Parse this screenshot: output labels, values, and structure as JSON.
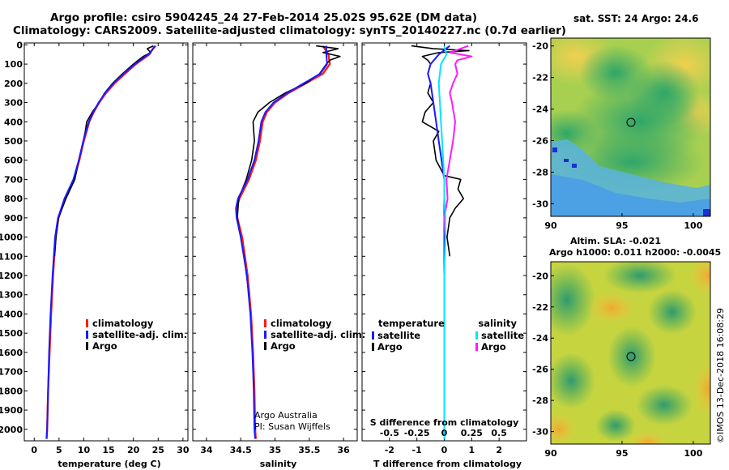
{
  "title_line1": "Argo profile: csiro 5904245_24 27-Feb-2014 25.02S 95.62E (DM data)",
  "title_line2": "Climatology: CARS2009. Satellite-adjusted climatology: synTS_20140227.nc (0.7d earlier)",
  "colors": {
    "climatology": "#ff1a1a",
    "satellite": "#1a1aff",
    "argo": "#000000",
    "sat_salinity": "#00e5ff",
    "argo_salinity": "#ff1aff"
  },
  "depth_ticks": [
    "0",
    "100",
    "200",
    "300",
    "400",
    "500",
    "600",
    "700",
    "800",
    "900",
    "1000",
    "1100",
    "1200",
    "1300",
    "1400",
    "1500",
    "1600",
    "1700",
    "1800",
    "1900",
    "2000"
  ],
  "chart_data": [
    {
      "type": "line",
      "panel": "temperature",
      "xlabel": "temperature (deg C)",
      "ylabel": "depth",
      "xlim": [
        -2,
        31
      ],
      "ylim": [
        2060,
        -10
      ],
      "xticks": [
        "0",
        "5",
        "10",
        "15",
        "20",
        "25",
        "30"
      ],
      "legend": [
        "climatology",
        "satellite-adj. clim.",
        "Argo"
      ],
      "series": [
        {
          "name": "climatology",
          "depth": [
            5,
            50,
            100,
            150,
            200,
            250,
            300,
            350,
            400,
            500,
            600,
            700,
            800,
            900,
            1000,
            1200,
            1400,
            1600,
            1800,
            2000,
            2050
          ],
          "values": [
            24.3,
            23.2,
            20.5,
            18.3,
            16.2,
            14.5,
            13.1,
            12.0,
            11.1,
            10.0,
            9.1,
            8.0,
            6.2,
            4.9,
            4.3,
            3.8,
            3.4,
            3.1,
            2.8,
            2.6,
            2.5
          ]
        },
        {
          "name": "satellite-adj. clim.",
          "depth": [
            5,
            50,
            100,
            150,
            200,
            250,
            300,
            350,
            400,
            500,
            600,
            700,
            800,
            900,
            1000,
            1200,
            1400,
            1600,
            1800,
            2000,
            2050
          ],
          "values": [
            24.5,
            23.0,
            20.3,
            18.0,
            16.0,
            14.3,
            13.0,
            11.9,
            11.0,
            9.9,
            9.0,
            7.9,
            6.1,
            4.8,
            4.2,
            3.7,
            3.3,
            3.0,
            2.8,
            2.6,
            2.5
          ]
        },
        {
          "name": "Argo",
          "depth": [
            5,
            20,
            40,
            60,
            80,
            100,
            150,
            200,
            250,
            300,
            350,
            400,
            450,
            500,
            600,
            700,
            800,
            900,
            1000,
            1100
          ],
          "values": [
            24.0,
            22.8,
            23.5,
            22.0,
            21.0,
            20.0,
            17.8,
            15.8,
            14.2,
            13.1,
            11.7,
            10.6,
            10.3,
            9.9,
            9.0,
            8.2,
            6.4,
            4.9,
            4.4,
            4.1
          ]
        }
      ]
    },
    {
      "type": "line",
      "panel": "salinity",
      "xlabel": "salinity",
      "ylabel": "depth",
      "xlim": [
        33.8,
        36.2
      ],
      "ylim": [
        2060,
        -10
      ],
      "xticks": [
        "34",
        "34.5",
        "35",
        "35.5",
        "36"
      ],
      "legend": [
        "climatology",
        "satellite-adj. clim.",
        "Argo"
      ],
      "credit_line1": "Argo Australia",
      "credit_line2": "PI: Susan Wijffels",
      "series": [
        {
          "name": "climatology",
          "depth": [
            5,
            50,
            100,
            150,
            200,
            250,
            300,
            350,
            400,
            500,
            600,
            700,
            800,
            850,
            900,
            1000,
            1200,
            1400,
            1600,
            1800,
            2000,
            2050
          ],
          "values": [
            35.7,
            35.78,
            35.8,
            35.7,
            35.45,
            35.2,
            35.0,
            34.88,
            34.82,
            34.78,
            34.72,
            34.62,
            34.48,
            34.44,
            34.45,
            34.52,
            34.6,
            34.65,
            34.68,
            34.7,
            34.71,
            34.72
          ]
        },
        {
          "name": "satellite-adj. clim.",
          "depth": [
            5,
            50,
            100,
            150,
            200,
            250,
            300,
            350,
            400,
            500,
            600,
            700,
            800,
            850,
            900,
            1000,
            1200,
            1400,
            1600,
            1800,
            2000,
            2050
          ],
          "values": [
            35.75,
            35.75,
            35.76,
            35.66,
            35.42,
            35.18,
            34.98,
            34.86,
            34.8,
            34.76,
            34.7,
            34.6,
            34.46,
            34.43,
            34.44,
            34.5,
            34.59,
            34.64,
            34.67,
            34.69,
            34.7,
            34.71
          ]
        },
        {
          "name": "Argo",
          "depth": [
            5,
            20,
            40,
            60,
            80,
            100,
            150,
            200,
            250,
            300,
            350,
            400,
            500,
            600,
            700,
            800,
            900,
            1000,
            1100,
            1300
          ],
          "values": [
            35.6,
            35.92,
            35.7,
            35.95,
            35.8,
            35.75,
            35.65,
            35.45,
            35.15,
            34.92,
            34.75,
            34.68,
            34.7,
            34.66,
            34.58,
            34.47,
            34.45,
            34.5,
            34.55,
            34.62
          ]
        }
      ]
    },
    {
      "type": "line",
      "panel": "differences",
      "xlabel": "T difference from climatology",
      "x2label": "S difference from climatology",
      "ylabel": "depth",
      "xlim": [
        -3,
        3
      ],
      "ylim": [
        2060,
        -10
      ],
      "xticks": [
        "-2",
        "-1",
        "0",
        "1",
        "2"
      ],
      "x2ticks": [
        "-0.5",
        "-0.25",
        "0",
        "0.25",
        "0.5"
      ],
      "legend_left_title": "temperature",
      "legend_right_title": "salinity",
      "legend_left": [
        "satellite",
        "Argo"
      ],
      "legend_right": [
        "satellite",
        "Argo"
      ],
      "series": [
        {
          "name": "T satellite",
          "depth": [
            5,
            50,
            100,
            150,
            200,
            300,
            400,
            500,
            600,
            700,
            800,
            900,
            1000,
            1200,
            1500,
            1800,
            2050
          ],
          "values": [
            0.2,
            -0.2,
            -0.5,
            -0.6,
            -0.5,
            -0.4,
            -0.3,
            -0.2,
            -0.1,
            0.0,
            0.0,
            0.0,
            0.0,
            0.0,
            0.0,
            0.0,
            0.0
          ]
        },
        {
          "name": "T Argo",
          "depth": [
            5,
            20,
            30,
            40,
            60,
            80,
            100,
            150,
            200,
            250,
            300,
            350,
            400,
            450,
            500,
            600,
            680,
            700,
            750,
            800,
            850,
            900,
            1000,
            1100
          ],
          "values": [
            -1.2,
            -0.4,
            0.9,
            -0.2,
            -0.8,
            -0.6,
            -0.5,
            -0.6,
            -0.5,
            -0.6,
            -0.4,
            -0.7,
            -0.8,
            -0.2,
            -0.4,
            -0.3,
            0.0,
            0.6,
            0.5,
            0.7,
            0.4,
            0.2,
            0.1,
            0.2
          ]
        },
        {
          "name": "S satellite",
          "depth": [
            5,
            50,
            100,
            200,
            300,
            400,
            500,
            700,
            800,
            900,
            1000,
            1200,
            1500,
            1800,
            2050
          ],
          "values": [
            0.0,
            0.02,
            -0.03,
            -0.05,
            -0.04,
            -0.03,
            -0.02,
            0.0,
            0.0,
            0.01,
            0.01,
            0.0,
            0.0,
            0.0,
            0.0
          ]
        },
        {
          "name": "S Argo",
          "depth": [
            5,
            20,
            40,
            60,
            80,
            100,
            150,
            200,
            250,
            300,
            400,
            500,
            600,
            700,
            800,
            900,
            1000
          ],
          "values": [
            0.22,
            0.15,
            0.05,
            0.25,
            0.12,
            0.1,
            0.12,
            0.08,
            0.05,
            0.07,
            0.1,
            0.08,
            0.05,
            0.02,
            0.03,
            0.0,
            0.01
          ]
        }
      ]
    }
  ],
  "map1": {
    "title": "sat. SST: 24 Argo: 24.6",
    "xticks": [
      "90",
      "95",
      "100"
    ],
    "yticks": [
      "-20",
      "-22",
      "-24",
      "-26",
      "-28",
      "-30"
    ]
  },
  "map2": {
    "title_line1": "Altim. SLA: -0.021",
    "title_line2": "Argo h1000: 0.011 h2000: -0.0045",
    "xticks": [
      "90",
      "95",
      "100"
    ],
    "yticks": [
      "-20",
      "-22",
      "-24",
      "-26",
      "-28",
      "-30"
    ]
  },
  "imos_stamp": "©IMOS 13-Dec-2018 16:08:29"
}
